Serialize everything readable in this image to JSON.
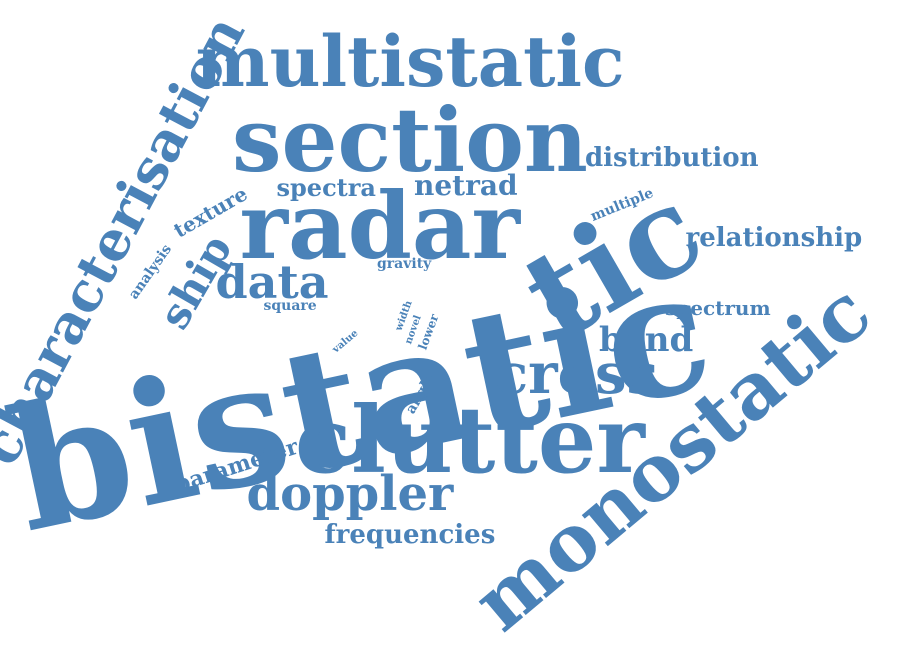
{
  "theme": {
    "text_color": "#4a82b8",
    "background": "#ffffff"
  },
  "words": [
    {
      "text": "bistatic",
      "rotate": -12
    },
    {
      "text": "monostatic",
      "rotate": -40
    },
    {
      "text": "clutter",
      "rotate": 0
    },
    {
      "text": "radar",
      "rotate": 0
    },
    {
      "text": "tic",
      "rotate": -30
    },
    {
      "text": "section",
      "rotate": 0
    },
    {
      "text": "multistatic",
      "rotate": 0
    },
    {
      "text": "characterisation",
      "rotate": -62
    },
    {
      "text": "cross",
      "rotate": 0
    },
    {
      "text": "doppler",
      "rotate": 0
    },
    {
      "text": "data",
      "rotate": 0
    },
    {
      "text": "ship",
      "rotate": -60
    },
    {
      "text": "band",
      "rotate": 0
    },
    {
      "text": "distribution",
      "rotate": 0
    },
    {
      "text": "relationship",
      "rotate": 0
    },
    {
      "text": "netrad",
      "rotate": 0
    },
    {
      "text": "spectra",
      "rotate": 0
    },
    {
      "text": "frequencies",
      "rotate": 0
    },
    {
      "text": "parameter",
      "rotate": -18
    },
    {
      "text": "texture",
      "rotate": -30
    },
    {
      "text": "spectrum",
      "rotate": 0
    },
    {
      "text": "multiple",
      "rotate": -22
    },
    {
      "text": "analysis",
      "rotate": -55
    },
    {
      "text": "square",
      "rotate": 0
    },
    {
      "text": "gravity",
      "rotate": 0
    },
    {
      "text": "angle",
      "rotate": -60
    },
    {
      "text": "width",
      "rotate": -70
    },
    {
      "text": "novel",
      "rotate": -70
    },
    {
      "text": "lower",
      "rotate": -70
    },
    {
      "text": "value",
      "rotate": -40
    }
  ]
}
